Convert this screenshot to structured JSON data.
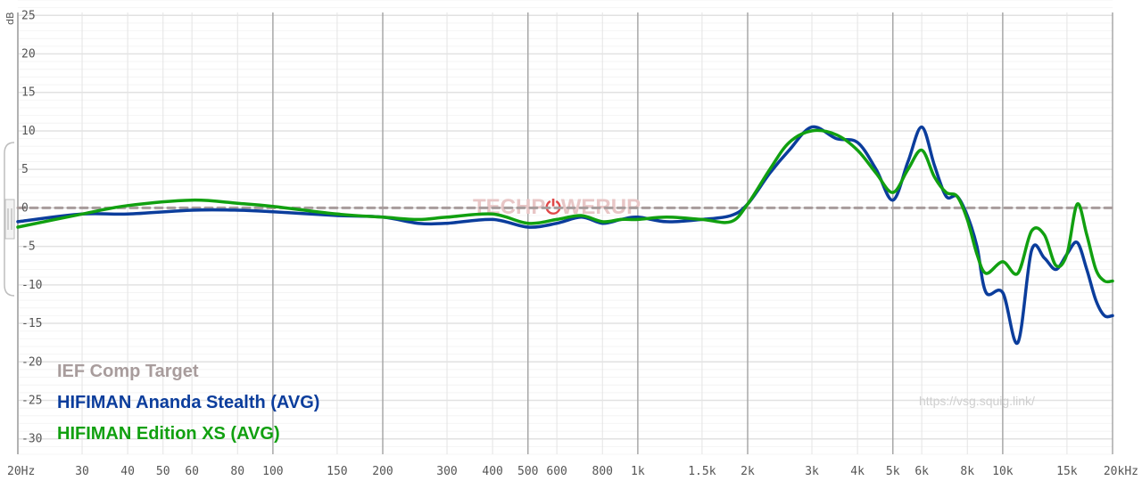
{
  "chart_data": {
    "type": "line",
    "ylabel": "dB",
    "ylim": [
      -32,
      27
    ],
    "xlim": [
      20,
      20000
    ],
    "x_scale": "log",
    "grid": true,
    "legend_position": "bottom-left",
    "y_ticks": [
      {
        "value": 25,
        "label": "25"
      },
      {
        "value": 20,
        "label": "20"
      },
      {
        "value": 15,
        "label": "15"
      },
      {
        "value": 10,
        "label": "10"
      },
      {
        "value": 5,
        "label": "5"
      },
      {
        "value": 0,
        "label": "0"
      },
      {
        "value": -5,
        "label": "-5"
      },
      {
        "value": -10,
        "label": "-10"
      },
      {
        "value": -15,
        "label": "-15"
      },
      {
        "value": -20,
        "label": "-20"
      },
      {
        "value": -25,
        "label": "-25"
      },
      {
        "value": -30,
        "label": "-30"
      }
    ],
    "x_ticks": [
      {
        "value": 20,
        "label": "20Hz",
        "major": true
      },
      {
        "value": 30,
        "label": "30"
      },
      {
        "value": 40,
        "label": "40"
      },
      {
        "value": 50,
        "label": "50"
      },
      {
        "value": 60,
        "label": "60"
      },
      {
        "value": 80,
        "label": "80"
      },
      {
        "value": 100,
        "label": "100",
        "major": true
      },
      {
        "value": 150,
        "label": "150"
      },
      {
        "value": 200,
        "label": "200",
        "major": true
      },
      {
        "value": 300,
        "label": "300"
      },
      {
        "value": 400,
        "label": "400"
      },
      {
        "value": 500,
        "label": "500",
        "major": true
      },
      {
        "value": 600,
        "label": "600"
      },
      {
        "value": 800,
        "label": "800"
      },
      {
        "value": 1000,
        "label": "1k",
        "major": true
      },
      {
        "value": 1500,
        "label": "1.5k"
      },
      {
        "value": 2000,
        "label": "2k",
        "major": true
      },
      {
        "value": 3000,
        "label": "3k"
      },
      {
        "value": 4000,
        "label": "4k"
      },
      {
        "value": 5000,
        "label": "5k",
        "major": true
      },
      {
        "value": 6000,
        "label": "6k"
      },
      {
        "value": 8000,
        "label": "8k"
      },
      {
        "value": 10000,
        "label": "10k",
        "major": true
      },
      {
        "value": 15000,
        "label": "15k"
      },
      {
        "value": 20000,
        "label": "20kHz",
        "major": true
      }
    ],
    "series": [
      {
        "name": "IEF Comp Target",
        "color": "#a89c9c",
        "style": "dashed",
        "x": [
          20,
          20000
        ],
        "y": [
          0,
          0
        ]
      },
      {
        "name": "HIFIMAN Ananda Stealth (AVG)",
        "color": "#0b3d9c",
        "style": "solid",
        "x": [
          20,
          30,
          40,
          60,
          80,
          100,
          150,
          200,
          250,
          300,
          400,
          500,
          600,
          700,
          800,
          900,
          1000,
          1200,
          1500,
          1800,
          2000,
          2300,
          2600,
          3000,
          3500,
          4000,
          4500,
          5000,
          5500,
          6000,
          6500,
          7000,
          7500,
          8000,
          8500,
          9000,
          10000,
          11000,
          12000,
          13000,
          14000,
          15000,
          16000,
          17000,
          18000,
          19000,
          20000
        ],
        "y": [
          -1.8,
          -0.8,
          -0.8,
          -0.3,
          -0.3,
          -0.5,
          -1.0,
          -1.2,
          -2.0,
          -2.0,
          -1.5,
          -2.5,
          -2.0,
          -1.2,
          -2.0,
          -1.5,
          -1.2,
          -1.8,
          -1.5,
          -1.0,
          0.5,
          4.5,
          7.5,
          10.5,
          9.0,
          8.5,
          5.0,
          1.0,
          6.0,
          10.5,
          5.5,
          1.5,
          1.5,
          -1.0,
          -5.0,
          -11.0,
          -11.0,
          -17.5,
          -5.5,
          -6.5,
          -8.0,
          -6.0,
          -4.5,
          -8.0,
          -12.0,
          -14.0,
          -14.0
        ]
      },
      {
        "name": "HIFIMAN Edition XS (AVG)",
        "color": "#11a010",
        "style": "solid",
        "x": [
          20,
          30,
          40,
          60,
          80,
          100,
          150,
          200,
          250,
          300,
          400,
          500,
          600,
          700,
          800,
          900,
          1000,
          1200,
          1500,
          1800,
          2000,
          2300,
          2600,
          3000,
          3500,
          4000,
          4500,
          5000,
          5500,
          6000,
          6500,
          7000,
          7500,
          8000,
          8500,
          9000,
          10000,
          11000,
          12000,
          13000,
          14000,
          15000,
          16000,
          17000,
          18000,
          19000,
          20000
        ],
        "y": [
          -2.5,
          -0.8,
          0.3,
          1.0,
          0.6,
          0.2,
          -0.8,
          -1.2,
          -1.5,
          -1.2,
          -0.8,
          -2.0,
          -1.5,
          -1.0,
          -1.8,
          -1.5,
          -1.5,
          -1.2,
          -1.5,
          -1.8,
          0.5,
          5.0,
          8.5,
          10.0,
          9.5,
          7.5,
          4.5,
          2.0,
          5.0,
          7.5,
          4.0,
          2.0,
          1.5,
          -1.5,
          -6.0,
          -8.5,
          -7.0,
          -8.5,
          -3.0,
          -3.5,
          -7.5,
          -6.0,
          0.5,
          -3.5,
          -8.0,
          -9.5,
          -9.5
        ]
      }
    ]
  },
  "axis_unit_label": "dB",
  "watermark": {
    "part1": "TECHP",
    "part2": "WERUP"
  },
  "source_url": "https://vsg.squig.link/",
  "legend": [
    {
      "label": "IEF Comp Target",
      "color": "#a89c9c"
    },
    {
      "label": "HIFIMAN Ananda Stealth (AVG)",
      "color": "#0b3d9c"
    },
    {
      "label": "HIFIMAN Edition XS (AVG)",
      "color": "#11a010"
    }
  ],
  "colors": {
    "grid_major": "#bdbdbd",
    "grid_minor": "#e6e6e6",
    "watermark": "#e8c6c6",
    "watermark_accent": "#e04848"
  }
}
